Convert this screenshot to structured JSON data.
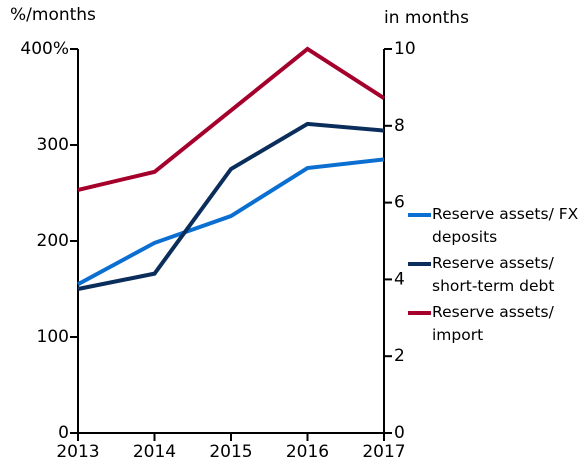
{
  "chart_data": {
    "type": "line",
    "y_label": "%/months",
    "y2_label": "in months",
    "categories": [
      "2013",
      "2014",
      "2015",
      "2016",
      "2017"
    ],
    "series": [
      {
        "name": "Reserve assets/ FX deposits",
        "color": "#0a6fd0",
        "values": [
          155,
          198,
          226,
          276,
          285
        ]
      },
      {
        "name": "Reserve assets/ short-term debt",
        "color": "#0a2d5c",
        "values": [
          150,
          166,
          275,
          322,
          315
        ]
      },
      {
        "name": "Reserve assets/ import",
        "color": "#a5002c",
        "axis": "y2",
        "values": [
          6.33,
          6.8,
          8.4,
          10.0,
          8.72
        ]
      }
    ],
    "ylim": [
      0,
      400
    ],
    "yticks": [
      0,
      100,
      200,
      300,
      {
        "value": 400,
        "label": "400%"
      }
    ],
    "y2lim": [
      0,
      10
    ],
    "y2ticks": [
      0,
      2,
      4,
      6,
      8,
      10
    ],
    "legend": "right"
  }
}
